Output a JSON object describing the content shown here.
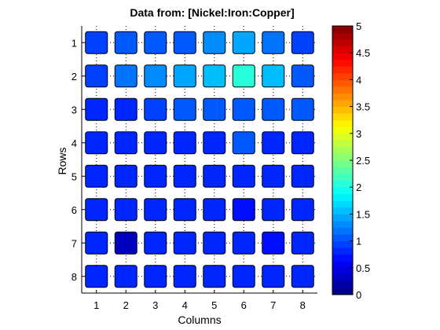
{
  "chart_data": {
    "type": "heatmap",
    "title": "Data from: [Nickel:Iron:Copper]",
    "xlabel": "Columns",
    "ylabel": "Rows",
    "x_ticks": [
      "1",
      "2",
      "3",
      "4",
      "5",
      "6",
      "7",
      "8"
    ],
    "y_ticks": [
      "1",
      "2",
      "3",
      "4",
      "5",
      "6",
      "7",
      "8"
    ],
    "colorbar": {
      "range": [
        0,
        5
      ],
      "ticks": [
        "0",
        "0.5",
        "1",
        "1.5",
        "2",
        "2.5",
        "3",
        "3.5",
        "4",
        "4.5",
        "5"
      ],
      "levels": 40
    },
    "grid": "dotted",
    "values": [
      [
        0.9,
        1.0,
        1.1,
        1.05,
        1.3,
        1.45,
        1.2,
        0.95
      ],
      [
        0.9,
        1.2,
        1.3,
        1.45,
        1.6,
        2.1,
        1.55,
        1.05
      ],
      [
        0.85,
        0.85,
        0.95,
        1.05,
        1.1,
        1.1,
        1.0,
        1.05
      ],
      [
        0.85,
        0.85,
        0.85,
        0.85,
        0.85,
        1.0,
        0.85,
        0.85
      ],
      [
        0.85,
        0.85,
        0.85,
        0.85,
        0.85,
        0.85,
        0.85,
        0.85
      ],
      [
        0.85,
        0.85,
        0.85,
        0.85,
        0.85,
        0.7,
        0.85,
        0.85
      ],
      [
        0.85,
        0.3,
        0.85,
        0.85,
        0.75,
        0.85,
        0.7,
        0.85
      ],
      [
        0.85,
        0.85,
        0.85,
        0.85,
        0.85,
        0.85,
        0.85,
        0.85
      ]
    ]
  }
}
